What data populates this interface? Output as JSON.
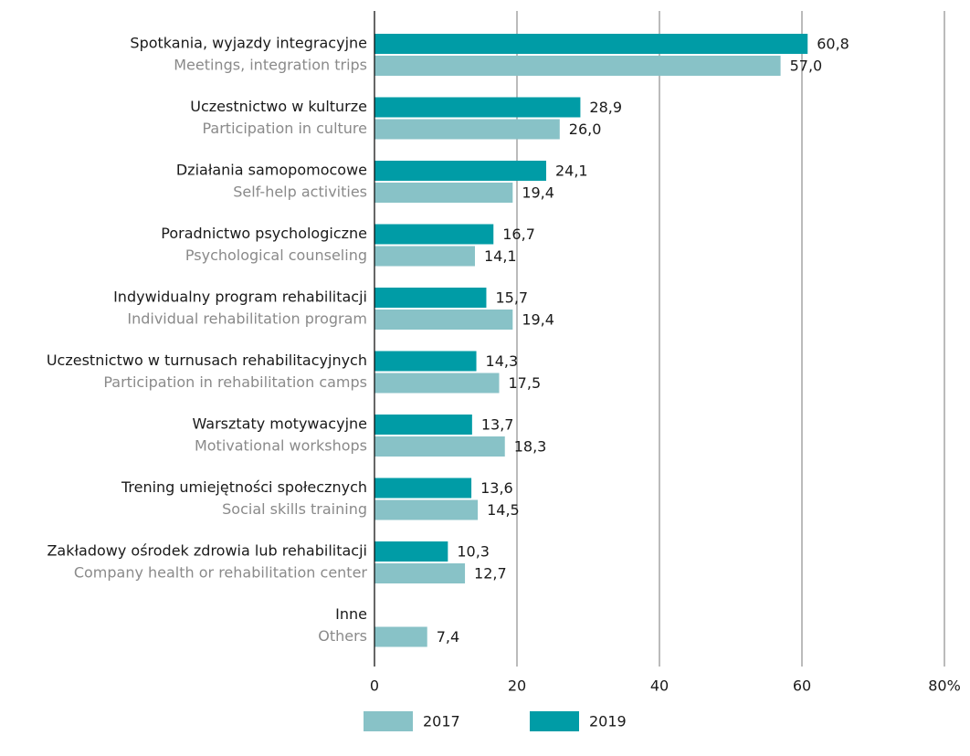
{
  "chart_data": {
    "type": "barh",
    "categories": [
      "Spotkania, wyjazdy integracyjne",
      "Uczestnictwo w kulturze",
      "Działania samopomocowe",
      "Poradnictwo psychologiczne",
      "Indywidualny program rehabilitacji",
      "Uczestnictwo w turnusach rehabilitacyjnych",
      "Warsztaty motywacyjne",
      "Trening umiejętności społecznych",
      "Zakładowy ośrodek zdrowia lub rehabilitacji",
      "Inne"
    ],
    "category_translations": [
      "Meetings, integration trips",
      "Participation in culture",
      "Self-help activities",
      "Psychological counseling",
      "Individual rehabilitation program",
      "Participation in rehabilitation camps",
      "Motivational workshops",
      "Social skills training",
      "Company health or rehabilitation center",
      "Others"
    ],
    "series": [
      {
        "name": "2017",
        "color": "#88c2c7",
        "values": [
          57.0,
          26.0,
          19.4,
          14.1,
          19.4,
          17.5,
          18.3,
          14.5,
          12.7,
          7.4
        ],
        "value_labels": [
          "57,0",
          "26,0",
          "19,4",
          "14,1",
          "19,4",
          "17,5",
          "18,3",
          "14,5",
          "12,7",
          "7,4"
        ]
      },
      {
        "name": "2019",
        "color": "#009ca6",
        "values": [
          60.8,
          28.9,
          24.1,
          16.7,
          15.7,
          14.3,
          13.7,
          13.6,
          10.3,
          null
        ],
        "value_labels": [
          "60,8",
          "28,9",
          "24,1",
          "16,7",
          "15,7",
          "14,3",
          "13,7",
          "13,6",
          "10,3",
          null
        ]
      }
    ],
    "xlim": [
      0,
      80
    ],
    "xticks": [
      0,
      20,
      40,
      60,
      {
        "value": 80,
        "label": "80%"
      }
    ],
    "grid": true,
    "legend": "bottom"
  }
}
